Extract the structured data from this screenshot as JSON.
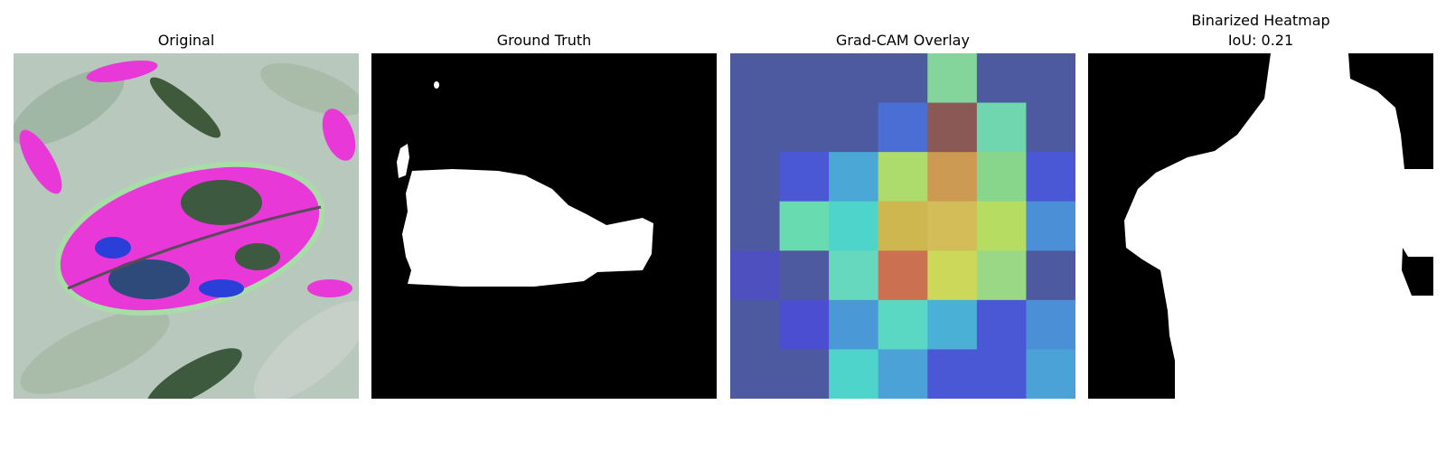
{
  "panels": [
    {
      "title": "Original"
    },
    {
      "title": "Ground Truth"
    },
    {
      "title": "Grad-CAM Overlay"
    },
    {
      "title_line1": "Binarized Heatmap",
      "title_line2": "IoU: 0.21"
    }
  ],
  "gradcam_grid": [
    [
      "#4e5aa0",
      "#4e5aa0",
      "#4e5aa0",
      "#4e5aa0",
      "#84d59c",
      "#4e5aa0",
      "#4e5aa0"
    ],
    [
      "#4e5aa0",
      "#4e5aa0",
      "#4e5aa0",
      "#4a6ed4",
      "#8a5956",
      "#6fd6b0",
      "#4e5aa0"
    ],
    [
      "#4e5aa0",
      "#4b58d6",
      "#4ba8d6",
      "#addb6c",
      "#cc9a52",
      "#88d58c",
      "#4b58d6"
    ],
    [
      "#4e5aa0",
      "#68dbb0",
      "#4fd4cc",
      "#cfb750",
      "#d3bd58",
      "#b6dc62",
      "#4b8fd6"
    ],
    [
      "#4e50c0",
      "#4e5aa0",
      "#66d8be",
      "#cc7052",
      "#ccd85a",
      "#9ad886",
      "#4e5aa0"
    ],
    [
      "#4e5aa0",
      "#4b4ed0",
      "#4b98d6",
      "#5bd8c4",
      "#4bb0d6",
      "#4b58d6",
      "#4b90d6"
    ],
    [
      "#4e5aa0",
      "#4e5aa0",
      "#4fd4cc",
      "#4ba2d6",
      "#4b58d6",
      "#4b58d6",
      "#4ba2d6"
    ]
  ]
}
